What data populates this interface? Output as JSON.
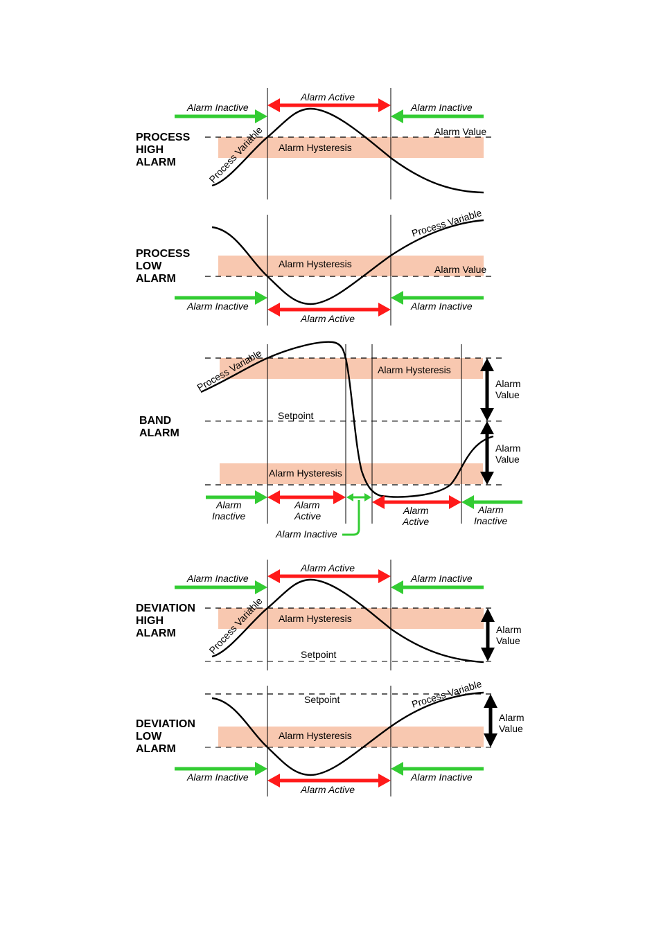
{
  "colors": {
    "inactive_arrow": "#33cc33",
    "active_arrow": "#ff1a1a",
    "hysteresis_band": "#f8c8b0"
  },
  "labels": {
    "alarm_active": "Alarm Active",
    "alarm_inactive": "Alarm Inactive",
    "alarm_value": "Alarm Value",
    "alarm_hysteresis": "Alarm Hysteresis",
    "process_variable": "Process Variable",
    "setpoint": "Setpoint",
    "alarm_word": "Alarm",
    "value_word": "Value",
    "active_word": "Active",
    "inactive_word": "Inactive"
  },
  "panels": {
    "process_high": {
      "title": [
        "PROCESS",
        "HIGH",
        "ALARM"
      ]
    },
    "process_low": {
      "title": [
        "PROCESS",
        "LOW",
        "ALARM"
      ]
    },
    "band": {
      "title": [
        "BAND",
        "ALARM"
      ]
    },
    "deviation_high": {
      "title": [
        "DEVIATION",
        "HIGH",
        "ALARM"
      ]
    },
    "deviation_low": {
      "title": [
        "DEVIATION",
        "LOW",
        "ALARM"
      ]
    }
  }
}
